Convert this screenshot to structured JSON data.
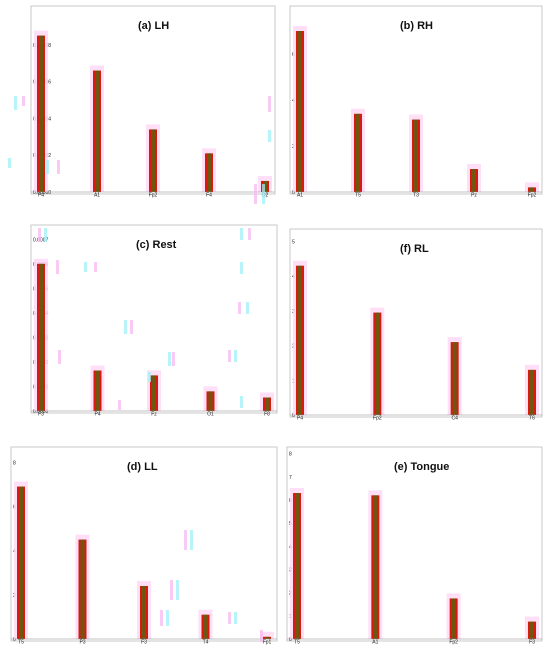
{
  "chart_data": [
    {
      "type": "bar",
      "title": "(a) LH",
      "categories": [
        "P4",
        "A1",
        "Fp2",
        "F4",
        "O2"
      ],
      "values": [
        8.5e-05,
        6.6e-05,
        3.4e-05,
        2.1e-05,
        6e-06
      ],
      "ylim": [
        0,
        0.0001
      ],
      "yticks": [
        "0.00000",
        "0.00002",
        "0.00004",
        "0.00006",
        "0.00008",
        "0.00010"
      ],
      "bar_color": "#d91a0f",
      "bar_core_color": "#4a6a12",
      "grid": false
    },
    {
      "type": "bar",
      "title": "(b) RH",
      "categories": [
        "A1",
        "T5",
        "T3",
        "Pz",
        "Fp2"
      ],
      "values": [
        7.0,
        3.4,
        3.15,
        1.0,
        0.2
      ],
      "ylim": [
        0,
        8
      ],
      "yticks": [
        "0",
        "2",
        "4",
        "6",
        "8"
      ],
      "bar_color": "#d91a0f",
      "bar_core_color": "#4a6a12",
      "grid": false
    },
    {
      "type": "bar",
      "title": "(c) Rest",
      "categories": [
        "F3",
        "P4",
        "Fz",
        "O1",
        "F8"
      ],
      "values": [
        0.0006,
        0.000165,
        0.000145,
        8e-05,
        5.5e-05
      ],
      "ylim": [
        0,
        0.00075
      ],
      "yticks": [
        "0.0000",
        "0.0001",
        "0.0002",
        "0.0003",
        "0.0004",
        "0.0005",
        "0.0006",
        "0.0007"
      ],
      "bar_color": "#d91a0f",
      "bar_core_color": "#4a6a12",
      "grid": false
    },
    {
      "type": "bar",
      "title": "(f) RL",
      "categories": [
        "P4",
        "Fp2",
        "C4",
        "T6"
      ],
      "values": [
        4.3,
        2.95,
        2.1,
        1.3
      ],
      "ylim": [
        0,
        5.3
      ],
      "yticks": [
        "0",
        "1",
        "2",
        "3",
        "4",
        "5"
      ],
      "bar_color": "#d91a0f",
      "bar_core_color": "#4a6a12",
      "grid": false
    },
    {
      "type": "bar",
      "title": "(d) LL",
      "categories": [
        "T5",
        "P3",
        "F3",
        "T4",
        "Fp1"
      ],
      "values": [
        6.9,
        4.5,
        2.4,
        1.1,
        0.1
      ],
      "ylim": [
        0,
        8.6
      ],
      "yticks": [
        "0",
        "2",
        "4",
        "6",
        "8"
      ],
      "bar_color": "#d91a0f",
      "bar_core_color": "#4a6a12",
      "grid": false
    },
    {
      "type": "bar",
      "title": "(e) Tongue",
      "categories": [
        "T5",
        "A1",
        "Fp2",
        "F3"
      ],
      "values": [
        6.3,
        6.2,
        1.75,
        0.75
      ],
      "ylim": [
        0,
        8.2
      ],
      "yticks": [
        "0",
        "1",
        "2",
        "3",
        "4",
        "5",
        "6",
        "7",
        "8"
      ],
      "bar_color": "#d91a0f",
      "bar_core_color": "#4a6a12",
      "grid": false
    }
  ]
}
